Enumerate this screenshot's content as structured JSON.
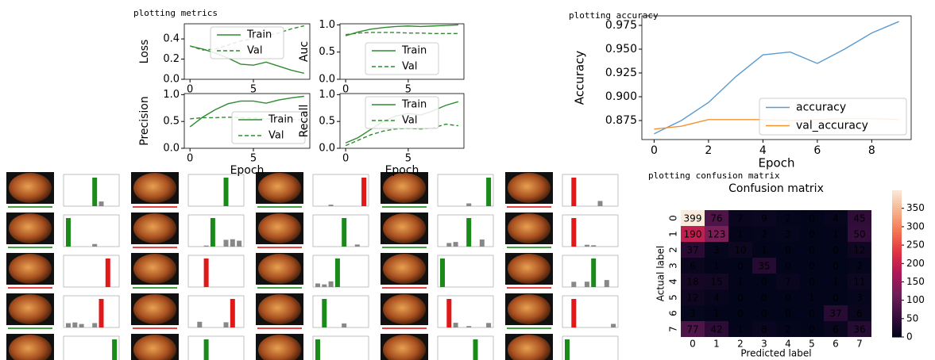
{
  "captions": {
    "metrics": "plotting metrics",
    "accuracy": "plotting accuracy",
    "confusion": "plotting confusion matrix"
  },
  "chart_data": [
    {
      "type": "line",
      "ylabel": "Loss",
      "x": [
        0,
        1,
        2,
        3,
        4,
        5,
        6,
        7,
        8,
        9
      ],
      "xlim": [
        -0.45,
        9.45
      ],
      "xticks": [
        0,
        5
      ],
      "ylim": [
        0,
        0.55
      ],
      "yticks": [
        {
          "value": 0,
          "label": "0.0"
        },
        {
          "value": 0.2,
          "label": "0.2"
        },
        {
          "value": 0.4,
          "label": "0.4"
        }
      ],
      "legend": "upper center",
      "series": [
        {
          "name": "Train",
          "color": "#2e8b2e",
          "dash": false,
          "values": [
            0.33,
            0.3,
            0.26,
            0.21,
            0.15,
            0.14,
            0.17,
            0.13,
            0.09,
            0.06
          ]
        },
        {
          "name": "Val",
          "color": "#2e8b2e",
          "dash": true,
          "values": [
            0.33,
            0.29,
            0.3,
            0.34,
            0.38,
            0.4,
            0.43,
            0.46,
            0.5,
            0.53
          ]
        }
      ]
    },
    {
      "type": "line",
      "ylabel": "Auc",
      "x": [
        0,
        1,
        2,
        3,
        4,
        5,
        6,
        7,
        8,
        9
      ],
      "xlim": [
        -0.45,
        9.45
      ],
      "xticks": [
        0,
        5
      ],
      "ylim": [
        0,
        1.02
      ],
      "yticks": [
        {
          "value": 0,
          "label": "0.0"
        },
        {
          "value": 0.5,
          "label": "0.5"
        },
        {
          "value": 1,
          "label": "1.0"
        }
      ],
      "legend": "lower center",
      "series": [
        {
          "name": "Train",
          "color": "#2e8b2e",
          "dash": false,
          "values": [
            0.8,
            0.87,
            0.92,
            0.95,
            0.97,
            0.98,
            0.97,
            0.98,
            0.99,
            1.0
          ]
        },
        {
          "name": "Val",
          "color": "#2e8b2e",
          "dash": true,
          "values": [
            0.82,
            0.85,
            0.86,
            0.86,
            0.86,
            0.85,
            0.85,
            0.84,
            0.84,
            0.84
          ]
        }
      ]
    },
    {
      "type": "line",
      "ylabel": "Precision",
      "xlabel": "Epoch",
      "x": [
        0,
        1,
        2,
        3,
        4,
        5,
        6,
        7,
        8,
        9
      ],
      "xlim": [
        -0.45,
        9.45
      ],
      "xticks": [
        0,
        5
      ],
      "ylim": [
        0,
        1.02
      ],
      "yticks": [
        {
          "value": 0,
          "label": "0.0"
        },
        {
          "value": 0.5,
          "label": "0.5"
        },
        {
          "value": 1,
          "label": "1.0"
        }
      ],
      "legend": "lower right",
      "series": [
        {
          "name": "Train",
          "color": "#2e8b2e",
          "dash": false,
          "values": [
            0.4,
            0.58,
            0.72,
            0.83,
            0.88,
            0.88,
            0.84,
            0.9,
            0.94,
            0.97
          ]
        },
        {
          "name": "Val",
          "color": "#2e8b2e",
          "dash": true,
          "values": [
            0.55,
            0.57,
            0.57,
            0.58,
            0.57,
            0.56,
            0.55,
            0.54,
            0.54,
            0.53
          ]
        }
      ]
    },
    {
      "type": "line",
      "ylabel": "Recall",
      "xlabel": "Epoch",
      "x": [
        0,
        1,
        2,
        3,
        4,
        5,
        6,
        7,
        8,
        9
      ],
      "xlim": [
        -0.45,
        9.45
      ],
      "xticks": [
        0,
        5
      ],
      "ylim": [
        0,
        1.02
      ],
      "yticks": [
        {
          "value": 0,
          "label": "0.0"
        },
        {
          "value": 0.5,
          "label": "0.5"
        },
        {
          "value": 1,
          "label": "1.0"
        }
      ],
      "legend": "upper center",
      "series": [
        {
          "name": "Train",
          "color": "#2e8b2e",
          "dash": false,
          "values": [
            0.1,
            0.2,
            0.35,
            0.5,
            0.6,
            0.65,
            0.62,
            0.7,
            0.8,
            0.87
          ]
        },
        {
          "name": "Val",
          "color": "#2e8b2e",
          "dash": true,
          "values": [
            0.05,
            0.15,
            0.25,
            0.32,
            0.36,
            0.37,
            0.36,
            0.38,
            0.45,
            0.42
          ]
        }
      ]
    },
    {
      "type": "line",
      "ylabel": "Accuracy",
      "xlabel": "Epoch",
      "x": [
        0,
        1,
        2,
        3,
        4,
        5,
        6,
        7,
        8,
        9
      ],
      "xlim": [
        -0.45,
        9.45
      ],
      "xticks": [
        0,
        2,
        4,
        6,
        8
      ],
      "ylim": [
        0.855,
        0.985
      ],
      "yticks": [
        0.875,
        {
          "value": 0.9,
          "label": "0.900"
        },
        0.925,
        {
          "value": 0.95,
          "label": "0.950"
        },
        0.975
      ],
      "legend": "lower right",
      "series": [
        {
          "name": "accuracy",
          "color": "#5b9bd0",
          "dash": false,
          "values": [
            0.861,
            0.875,
            0.894,
            0.921,
            0.944,
            0.947,
            0.935,
            0.95,
            0.967,
            0.979
          ]
        },
        {
          "name": "val_accuracy",
          "color": "#f5932f",
          "dash": false,
          "values": [
            0.866,
            0.869,
            0.876,
            0.876,
            0.876,
            0.875,
            0.876,
            0.877,
            0.877,
            0.876
          ]
        }
      ]
    },
    {
      "type": "heatmap",
      "title": "Confusion matrix",
      "xlabel": "Predicted label",
      "ylabel": "Actual label",
      "x": [
        0,
        1,
        2,
        3,
        4,
        5,
        6,
        7
      ],
      "y": [
        0,
        1,
        2,
        3,
        4,
        5,
        6,
        7
      ],
      "z": [
        [
          399,
          76,
          7,
          9,
          2,
          0,
          4,
          45
        ],
        [
          190,
          123,
          1,
          2,
          3,
          0,
          1,
          50
        ],
        [
          37,
          3,
          10,
          1,
          0,
          0,
          0,
          12
        ],
        [
          6,
          1,
          0,
          35,
          0,
          0,
          0,
          2
        ],
        [
          18,
          15,
          1,
          0,
          7,
          0,
          1,
          11
        ],
        [
          12,
          4,
          0,
          0,
          0,
          1,
          0,
          3
        ],
        [
          3,
          1,
          0,
          0,
          0,
          0,
          37,
          6
        ],
        [
          77,
          42,
          1,
          8,
          2,
          0,
          6,
          36
        ]
      ],
      "zlim": [
        0,
        399
      ],
      "colorbar_ticks": [
        0,
        50,
        100,
        150,
        200,
        250,
        300,
        350
      ],
      "colors": [
        "#03051a",
        "#3b0f40",
        "#701f57",
        "#ad1759",
        "#e13342",
        "#f37651",
        "#f6b48f",
        "#faebdd"
      ]
    }
  ]
}
